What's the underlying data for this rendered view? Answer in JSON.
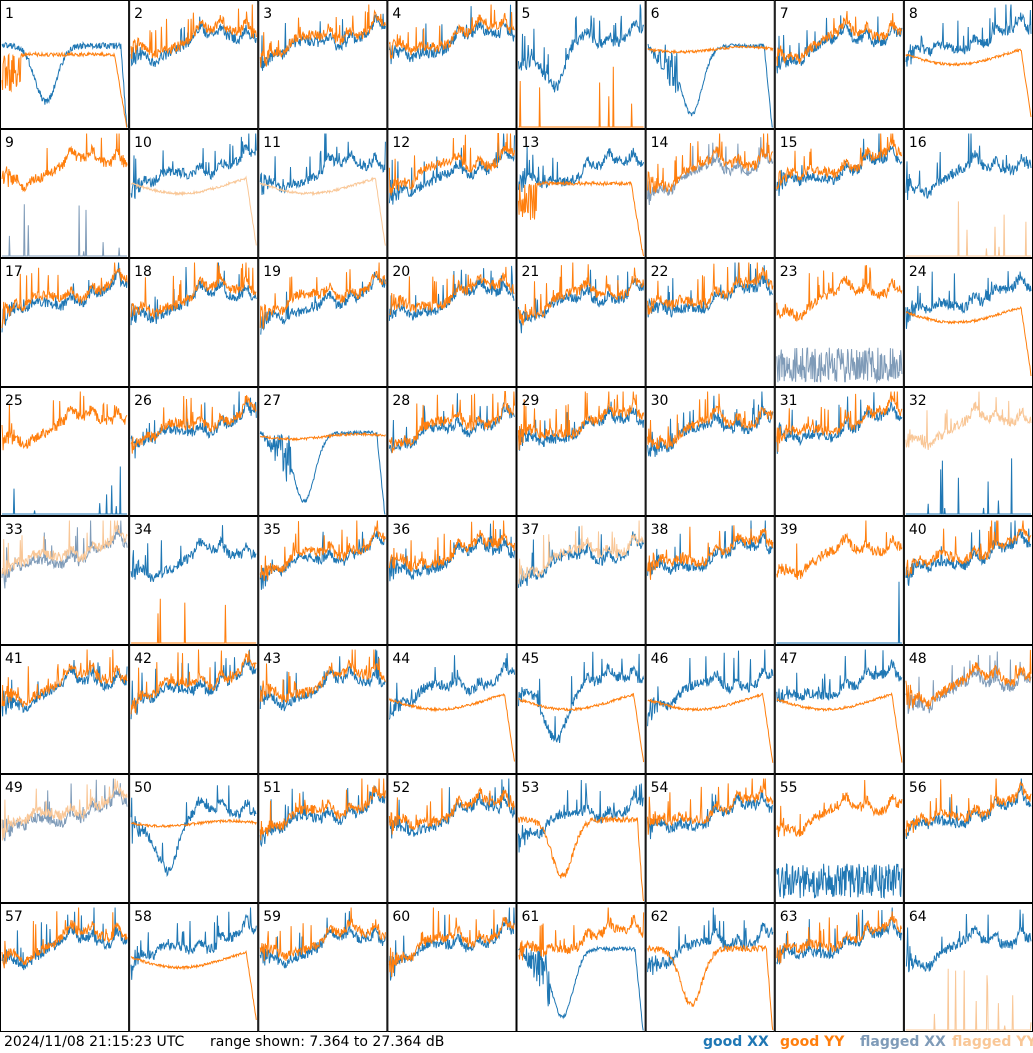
{
  "chart_data": {
    "type": "line",
    "title": "",
    "timestamp": "2024/11/08 21:15:23 UTC",
    "range_text": "range shown: 7.364 to 27.364 dB",
    "ylim_db": [
      7.364,
      27.364
    ],
    "grid": {
      "rows": 8,
      "cols": 8
    },
    "legend": [
      {
        "label": "good XX",
        "color": "#1f77b4"
      },
      {
        "label": "good YY",
        "color": "#ff7f0e"
      },
      {
        "label": "flagged XX",
        "color": "#7f9bb8"
      },
      {
        "label": "flagged YY",
        "color": "#f9c797"
      }
    ],
    "legend_placement": "bottom-right",
    "panels": [
      {
        "label": "1",
        "xx": "good",
        "yy": "good",
        "xx_mode": "low-dip",
        "yy_mode": "rolloff"
      },
      {
        "label": "2",
        "xx": "good",
        "yy": "good",
        "xx_mode": "normal",
        "yy_mode": "normal"
      },
      {
        "label": "3",
        "xx": "good",
        "yy": "good",
        "xx_mode": "normal",
        "yy_mode": "normal"
      },
      {
        "label": "4",
        "xx": "good",
        "yy": "good",
        "xx_mode": "normal",
        "yy_mode": "normal"
      },
      {
        "label": "5",
        "xx": "good",
        "yy": "good",
        "xx_mode": "dip",
        "yy_mode": "spikes-bottom"
      },
      {
        "label": "6",
        "xx": "good",
        "yy": "good",
        "xx_mode": "deep-dip",
        "yy_mode": "flat-high"
      },
      {
        "label": "7",
        "xx": "good",
        "yy": "good",
        "xx_mode": "normal",
        "yy_mode": "normal"
      },
      {
        "label": "8",
        "xx": "good",
        "yy": "good",
        "xx_mode": "normal",
        "yy_mode": "smooth-drop"
      },
      {
        "label": "9",
        "xx": "flagged",
        "yy": "good",
        "xx_mode": "spikes-bottom",
        "yy_mode": "normal"
      },
      {
        "label": "10",
        "xx": "good",
        "yy": "flagged",
        "xx_mode": "normal",
        "yy_mode": "smooth-drop"
      },
      {
        "label": "11",
        "xx": "good",
        "yy": "flagged",
        "xx_mode": "normal",
        "yy_mode": "smooth-drop"
      },
      {
        "label": "12",
        "xx": "good",
        "yy": "good",
        "xx_mode": "low",
        "yy_mode": "normal"
      },
      {
        "label": "13",
        "xx": "good",
        "yy": "good",
        "xx_mode": "normal",
        "yy_mode": "rolloff"
      },
      {
        "label": "14",
        "xx": "flagged",
        "yy": "good",
        "xx_mode": "normal",
        "yy_mode": "normal"
      },
      {
        "label": "15",
        "xx": "good",
        "yy": "good",
        "xx_mode": "normal",
        "yy_mode": "normal"
      },
      {
        "label": "16",
        "xx": "good",
        "yy": "flagged",
        "xx_mode": "normal",
        "yy_mode": "spikes-bottom"
      },
      {
        "label": "17",
        "xx": "good",
        "yy": "good",
        "xx_mode": "normal",
        "yy_mode": "normal"
      },
      {
        "label": "18",
        "xx": "good",
        "yy": "good",
        "xx_mode": "normal",
        "yy_mode": "normal"
      },
      {
        "label": "19",
        "xx": "good",
        "yy": "good",
        "xx_mode": "low",
        "yy_mode": "normal"
      },
      {
        "label": "20",
        "xx": "good",
        "yy": "good",
        "xx_mode": "normal",
        "yy_mode": "normal"
      },
      {
        "label": "21",
        "xx": "good",
        "yy": "good",
        "xx_mode": "normal",
        "yy_mode": "normal"
      },
      {
        "label": "22",
        "xx": "good",
        "yy": "good",
        "xx_mode": "normal",
        "yy_mode": "normal"
      },
      {
        "label": "23",
        "xx": "flagged",
        "yy": "good",
        "xx_mode": "noisy-low",
        "yy_mode": "normal"
      },
      {
        "label": "24",
        "xx": "good",
        "yy": "good",
        "xx_mode": "normal",
        "yy_mode": "smooth-drop"
      },
      {
        "label": "25",
        "xx": "good",
        "yy": "good",
        "xx_mode": "spikes-bottom",
        "yy_mode": "normal"
      },
      {
        "label": "26",
        "xx": "good",
        "yy": "good",
        "xx_mode": "normal",
        "yy_mode": "normal"
      },
      {
        "label": "27",
        "xx": "good",
        "yy": "good",
        "xx_mode": "deep-dip",
        "yy_mode": "flat-high"
      },
      {
        "label": "28",
        "xx": "good",
        "yy": "good",
        "xx_mode": "normal",
        "yy_mode": "normal"
      },
      {
        "label": "29",
        "xx": "good",
        "yy": "good",
        "xx_mode": "normal",
        "yy_mode": "normal"
      },
      {
        "label": "30",
        "xx": "good",
        "yy": "good",
        "xx_mode": "normal",
        "yy_mode": "normal"
      },
      {
        "label": "31",
        "xx": "good",
        "yy": "good",
        "xx_mode": "normal",
        "yy_mode": "normal"
      },
      {
        "label": "32",
        "xx": "good",
        "yy": "flagged",
        "xx_mode": "spikes-bottom",
        "yy_mode": "normal"
      },
      {
        "label": "33",
        "xx": "flagged",
        "yy": "flagged",
        "xx_mode": "normal",
        "yy_mode": "normal"
      },
      {
        "label": "34",
        "xx": "good",
        "yy": "good",
        "xx_mode": "normal",
        "yy_mode": "spikes-bottom"
      },
      {
        "label": "35",
        "xx": "good",
        "yy": "good",
        "xx_mode": "normal",
        "yy_mode": "normal"
      },
      {
        "label": "36",
        "xx": "good",
        "yy": "good",
        "xx_mode": "normal",
        "yy_mode": "normal"
      },
      {
        "label": "37",
        "xx": "good",
        "yy": "flagged",
        "xx_mode": "normal",
        "yy_mode": "normal"
      },
      {
        "label": "38",
        "xx": "good",
        "yy": "good",
        "xx_mode": "normal",
        "yy_mode": "normal"
      },
      {
        "label": "39",
        "xx": "good",
        "yy": "good",
        "xx_mode": "spikes-bottom",
        "yy_mode": "normal"
      },
      {
        "label": "40",
        "xx": "good",
        "yy": "good",
        "xx_mode": "normal",
        "yy_mode": "normal"
      },
      {
        "label": "41",
        "xx": "good",
        "yy": "good",
        "xx_mode": "normal",
        "yy_mode": "normal"
      },
      {
        "label": "42",
        "xx": "good",
        "yy": "good",
        "xx_mode": "normal",
        "yy_mode": "normal"
      },
      {
        "label": "43",
        "xx": "good",
        "yy": "good",
        "xx_mode": "normal",
        "yy_mode": "normal"
      },
      {
        "label": "44",
        "xx": "good",
        "yy": "good",
        "xx_mode": "normal",
        "yy_mode": "smooth-drop"
      },
      {
        "label": "45",
        "xx": "good",
        "yy": "good",
        "xx_mode": "dip",
        "yy_mode": "smooth-drop"
      },
      {
        "label": "46",
        "xx": "good",
        "yy": "good",
        "xx_mode": "normal",
        "yy_mode": "smooth-drop"
      },
      {
        "label": "47",
        "xx": "good",
        "yy": "good",
        "xx_mode": "normal",
        "yy_mode": "smooth-drop"
      },
      {
        "label": "48",
        "xx": "flagged",
        "yy": "good",
        "xx_mode": "normal",
        "yy_mode": "normal"
      },
      {
        "label": "49",
        "xx": "flagged",
        "yy": "flagged",
        "xx_mode": "normal",
        "yy_mode": "normal"
      },
      {
        "label": "50",
        "xx": "good",
        "yy": "good",
        "xx_mode": "dip",
        "yy_mode": "flat-high"
      },
      {
        "label": "51",
        "xx": "good",
        "yy": "good",
        "xx_mode": "normal",
        "yy_mode": "normal"
      },
      {
        "label": "52",
        "xx": "good",
        "yy": "good",
        "xx_mode": "normal",
        "yy_mode": "normal"
      },
      {
        "label": "53",
        "xx": "good",
        "yy": "good",
        "xx_mode": "normal",
        "yy_mode": "low-dip"
      },
      {
        "label": "54",
        "xx": "good",
        "yy": "good",
        "xx_mode": "normal",
        "yy_mode": "normal"
      },
      {
        "label": "55",
        "xx": "good",
        "yy": "good",
        "xx_mode": "noisy-low",
        "yy_mode": "normal"
      },
      {
        "label": "56",
        "xx": "good",
        "yy": "good",
        "xx_mode": "normal",
        "yy_mode": "normal"
      },
      {
        "label": "57",
        "xx": "good",
        "yy": "good",
        "xx_mode": "normal",
        "yy_mode": "normal"
      },
      {
        "label": "58",
        "xx": "good",
        "yy": "good",
        "xx_mode": "normal",
        "yy_mode": "smooth-drop"
      },
      {
        "label": "59",
        "xx": "good",
        "yy": "good",
        "xx_mode": "normal",
        "yy_mode": "normal"
      },
      {
        "label": "60",
        "xx": "good",
        "yy": "good",
        "xx_mode": "normal",
        "yy_mode": "normal"
      },
      {
        "label": "61",
        "xx": "good",
        "yy": "good",
        "xx_mode": "deep-dip",
        "yy_mode": "normal"
      },
      {
        "label": "62",
        "xx": "good",
        "yy": "good",
        "xx_mode": "normal",
        "yy_mode": "low-dip"
      },
      {
        "label": "63",
        "xx": "good",
        "yy": "good",
        "xx_mode": "normal",
        "yy_mode": "normal"
      },
      {
        "label": "64",
        "xx": "good",
        "yy": "flagged",
        "xx_mode": "normal",
        "yy_mode": "spikes-bottom"
      }
    ]
  }
}
